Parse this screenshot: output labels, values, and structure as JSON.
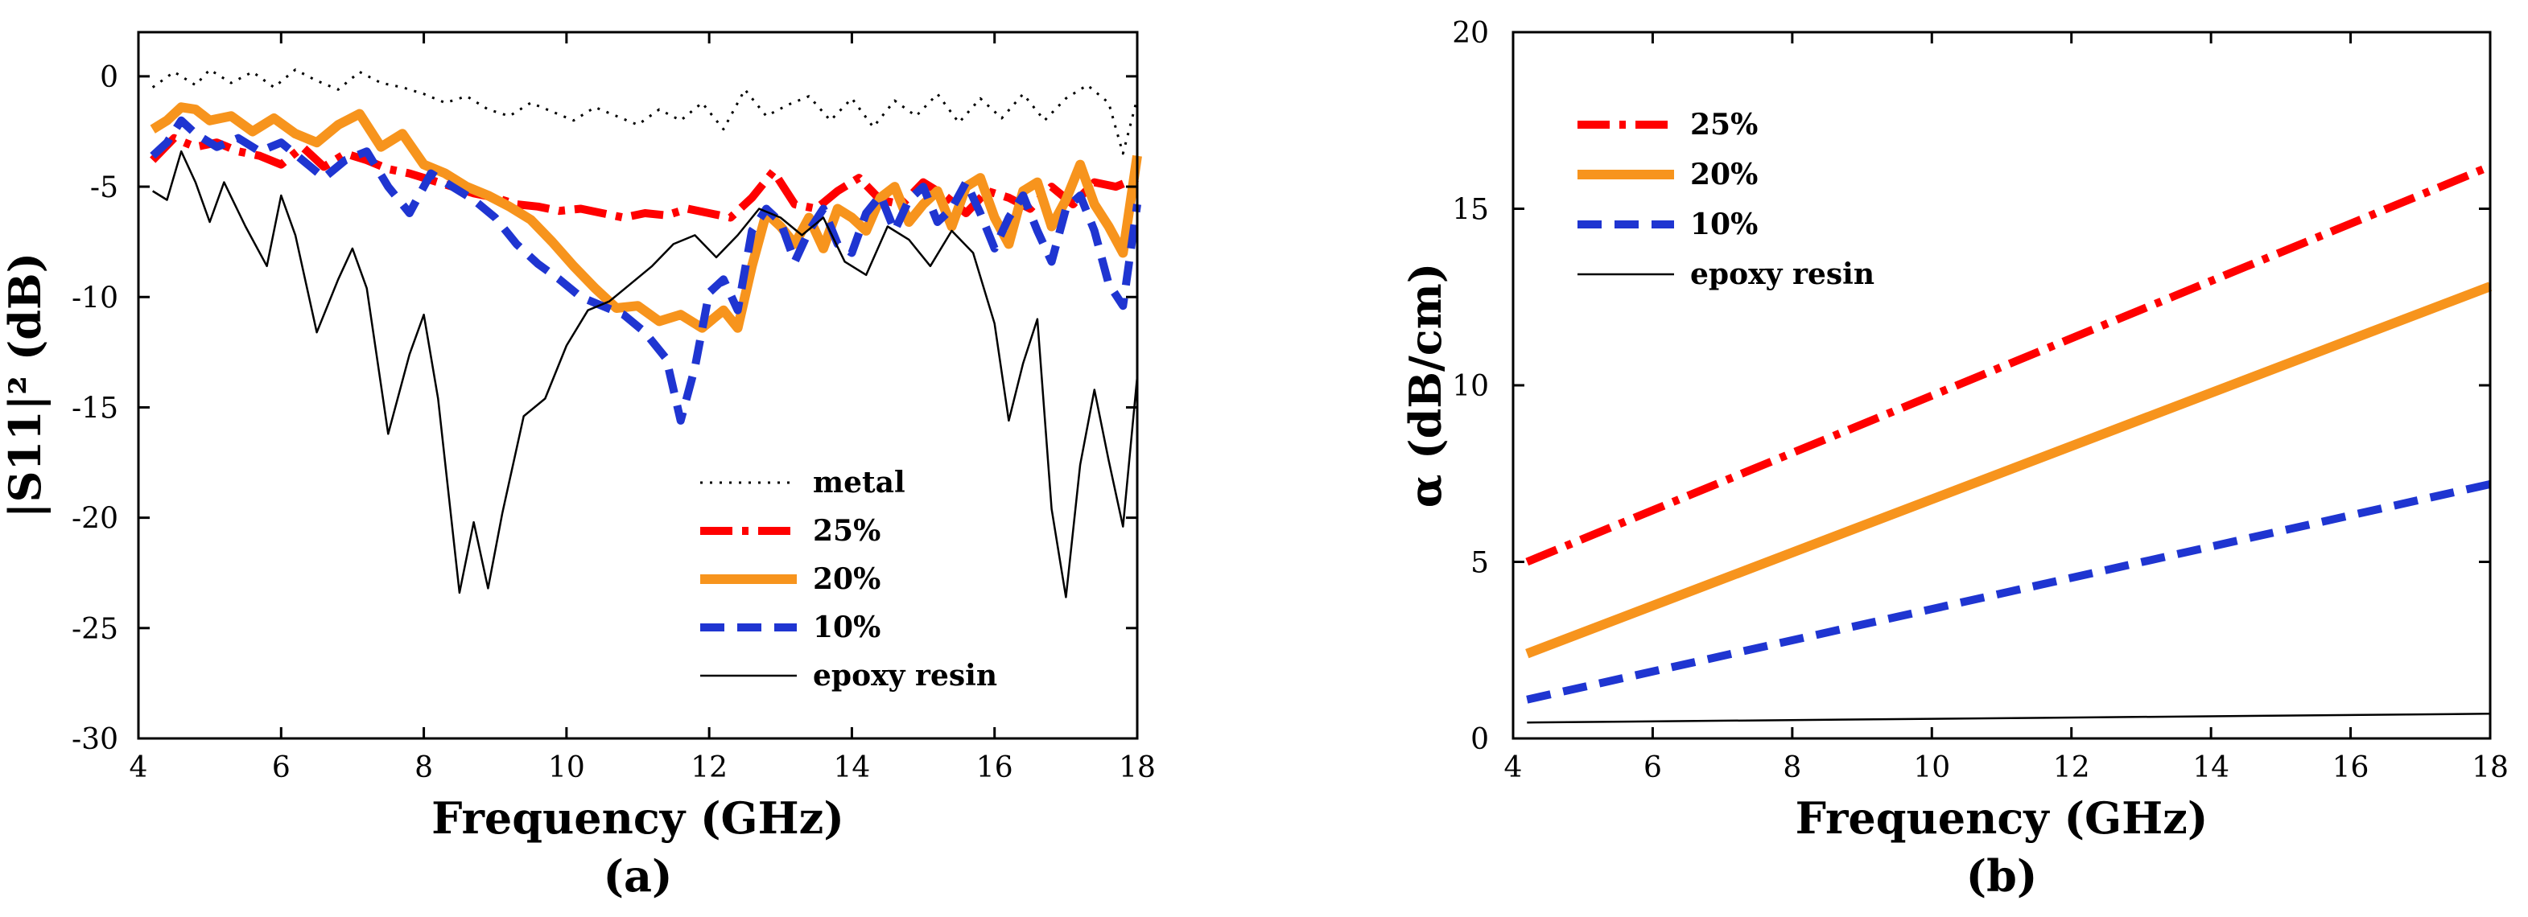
{
  "chart_data": [
    {
      "type": "line",
      "caption": "(a)",
      "xlabel": "Frequency (GHz)",
      "ylabel": "|S11|² (dB)",
      "xlim": [
        4.2,
        18
      ],
      "ylim": [
        -30,
        2
      ],
      "xticks": [
        4,
        6,
        8,
        10,
        12,
        14,
        16,
        18
      ],
      "yticks": [
        0,
        -5,
        -10,
        -15,
        -20,
        -25,
        -30
      ],
      "grid": false,
      "legend_position": "bottom-right",
      "series": [
        {
          "name": "metal",
          "color": "#000000",
          "style": "dotted",
          "x": [
            4.2,
            4.5,
            4.8,
            5.0,
            5.3,
            5.6,
            5.9,
            6.2,
            6.5,
            6.8,
            7.1,
            7.4,
            7.7,
            8.0,
            8.3,
            8.6,
            8.9,
            9.2,
            9.5,
            9.8,
            10.1,
            10.4,
            10.7,
            11.0,
            11.3,
            11.6,
            11.9,
            12.2,
            12.5,
            12.8,
            13.1,
            13.4,
            13.7,
            14.0,
            14.3,
            14.6,
            14.9,
            15.2,
            15.5,
            15.8,
            16.1,
            16.4,
            16.7,
            17.0,
            17.3,
            17.6,
            17.8,
            18.0
          ],
          "y": [
            -0.5,
            0.2,
            -0.4,
            0.3,
            -0.3,
            0.2,
            -0.5,
            0.3,
            -0.2,
            -0.6,
            0.2,
            -0.3,
            -0.5,
            -0.8,
            -1.2,
            -0.9,
            -1.5,
            -1.8,
            -1.2,
            -1.6,
            -2.0,
            -1.4,
            -1.8,
            -2.2,
            -1.5,
            -2.0,
            -1.2,
            -2.4,
            -0.6,
            -1.8,
            -1.3,
            -0.9,
            -2.0,
            -1.0,
            -2.3,
            -1.1,
            -1.8,
            -0.8,
            -2.1,
            -1.0,
            -1.9,
            -0.8,
            -2.0,
            -1.0,
            -0.4,
            -1.2,
            -3.5,
            -1.0
          ]
        },
        {
          "name": "25%",
          "color": "#ff0000",
          "style": "dashdot",
          "x": [
            4.2,
            4.5,
            4.8,
            5.1,
            5.4,
            5.7,
            6.0,
            6.3,
            6.6,
            6.9,
            7.2,
            7.5,
            7.8,
            8.1,
            8.4,
            8.7,
            9.0,
            9.3,
            9.6,
            9.9,
            10.2,
            10.5,
            10.8,
            11.1,
            11.4,
            11.7,
            12.0,
            12.3,
            12.6,
            12.9,
            13.2,
            13.5,
            13.8,
            14.1,
            14.4,
            14.7,
            15.0,
            15.3,
            15.6,
            15.9,
            16.2,
            16.5,
            16.8,
            17.1,
            17.4,
            17.7,
            18.0
          ],
          "y": [
            -3.8,
            -2.8,
            -3.2,
            -3.0,
            -3.4,
            -3.6,
            -4.0,
            -3.2,
            -4.1,
            -3.5,
            -3.8,
            -4.2,
            -4.4,
            -4.7,
            -5.0,
            -5.3,
            -5.5,
            -5.8,
            -5.9,
            -6.1,
            -6.0,
            -6.2,
            -6.4,
            -6.2,
            -6.3,
            -6.0,
            -6.2,
            -6.4,
            -5.5,
            -4.3,
            -5.8,
            -6.0,
            -5.2,
            -4.6,
            -5.6,
            -5.8,
            -4.8,
            -5.4,
            -6.2,
            -5.2,
            -5.5,
            -6.0,
            -5.0,
            -5.8,
            -4.8,
            -5.0,
            -4.6
          ]
        },
        {
          "name": "20%",
          "color": "#f7941d",
          "style": "solid-thick",
          "x": [
            4.2,
            4.4,
            4.6,
            4.8,
            5.0,
            5.3,
            5.6,
            5.9,
            6.2,
            6.5,
            6.8,
            7.1,
            7.4,
            7.7,
            8.0,
            8.3,
            8.6,
            8.9,
            9.2,
            9.5,
            9.8,
            10.1,
            10.4,
            10.7,
            11.0,
            11.3,
            11.6,
            11.9,
            12.2,
            12.4,
            12.6,
            12.8,
            13.0,
            13.2,
            13.4,
            13.6,
            13.8,
            14.0,
            14.2,
            14.4,
            14.6,
            14.8,
            15.0,
            15.2,
            15.4,
            15.6,
            15.8,
            16.0,
            16.2,
            16.4,
            16.6,
            16.8,
            17.0,
            17.2,
            17.4,
            17.6,
            17.8,
            18.0
          ],
          "y": [
            -2.4,
            -2.0,
            -1.4,
            -1.5,
            -2.0,
            -1.8,
            -2.5,
            -1.9,
            -2.6,
            -3.0,
            -2.2,
            -1.7,
            -3.2,
            -2.6,
            -4.0,
            -4.4,
            -5.0,
            -5.4,
            -5.9,
            -6.5,
            -7.5,
            -8.6,
            -9.6,
            -10.5,
            -10.4,
            -11.1,
            -10.8,
            -11.4,
            -10.6,
            -11.4,
            -8.6,
            -6.2,
            -6.8,
            -7.6,
            -6.4,
            -7.8,
            -6.0,
            -6.4,
            -7.0,
            -5.5,
            -5.0,
            -6.6,
            -5.8,
            -5.2,
            -6.8,
            -5.0,
            -4.6,
            -6.4,
            -7.6,
            -5.2,
            -4.8,
            -6.8,
            -5.6,
            -4.0,
            -5.8,
            -6.8,
            -8.0,
            -3.6
          ]
        },
        {
          "name": "10%",
          "color": "#1f35d1",
          "style": "dashed",
          "x": [
            4.2,
            4.4,
            4.6,
            4.8,
            5.1,
            5.4,
            5.7,
            6.0,
            6.3,
            6.6,
            6.9,
            7.2,
            7.5,
            7.8,
            8.1,
            8.4,
            8.7,
            9.0,
            9.3,
            9.6,
            9.9,
            10.2,
            10.5,
            10.8,
            11.1,
            11.4,
            11.6,
            11.8,
            12.0,
            12.2,
            12.4,
            12.6,
            12.8,
            13.0,
            13.2,
            13.4,
            13.6,
            13.8,
            14.0,
            14.2,
            14.4,
            14.6,
            14.8,
            15.0,
            15.2,
            15.4,
            15.6,
            15.8,
            16.0,
            16.2,
            16.4,
            16.6,
            16.8,
            17.0,
            17.2,
            17.4,
            17.6,
            17.8,
            18.0
          ],
          "y": [
            -3.6,
            -3.0,
            -2.0,
            -2.6,
            -3.2,
            -2.8,
            -3.4,
            -3.0,
            -3.8,
            -4.6,
            -3.8,
            -3.4,
            -5.0,
            -6.2,
            -4.4,
            -5.0,
            -5.6,
            -6.4,
            -7.6,
            -8.5,
            -9.2,
            -10.0,
            -10.4,
            -10.8,
            -11.6,
            -12.8,
            -15.6,
            -13.2,
            -9.8,
            -9.2,
            -10.6,
            -7.0,
            -6.0,
            -6.6,
            -8.4,
            -7.0,
            -6.0,
            -7.6,
            -8.0,
            -6.2,
            -5.4,
            -7.0,
            -5.6,
            -5.0,
            -6.6,
            -6.0,
            -4.8,
            -6.2,
            -7.8,
            -6.4,
            -5.4,
            -7.0,
            -8.4,
            -6.0,
            -5.4,
            -7.0,
            -9.4,
            -10.4,
            -5.8
          ]
        },
        {
          "name": "epoxy resin",
          "color": "#000000",
          "style": "solid-thin",
          "x": [
            4.2,
            4.4,
            4.6,
            4.8,
            5.0,
            5.2,
            5.5,
            5.8,
            6.0,
            6.2,
            6.5,
            6.8,
            7.0,
            7.2,
            7.5,
            7.8,
            8.0,
            8.2,
            8.5,
            8.7,
            8.9,
            9.1,
            9.4,
            9.7,
            10.0,
            10.3,
            10.6,
            10.9,
            11.2,
            11.5,
            11.8,
            12.1,
            12.4,
            12.7,
            13.0,
            13.3,
            13.6,
            13.9,
            14.2,
            14.5,
            14.8,
            15.1,
            15.4,
            15.7,
            16.0,
            16.2,
            16.4,
            16.6,
            16.8,
            17.0,
            17.2,
            17.4,
            17.6,
            17.8,
            18.0
          ],
          "y": [
            -5.2,
            -5.6,
            -3.4,
            -4.8,
            -6.6,
            -4.8,
            -6.8,
            -8.6,
            -5.4,
            -7.2,
            -11.6,
            -9.2,
            -7.8,
            -9.6,
            -16.2,
            -12.6,
            -10.8,
            -14.6,
            -23.4,
            -20.2,
            -23.2,
            -19.8,
            -15.4,
            -14.6,
            -12.2,
            -10.6,
            -10.2,
            -9.4,
            -8.6,
            -7.6,
            -7.2,
            -8.2,
            -7.2,
            -6.0,
            -6.4,
            -7.2,
            -6.4,
            -8.4,
            -9.0,
            -6.8,
            -7.4,
            -8.6,
            -7.0,
            -8.0,
            -11.2,
            -15.6,
            -13.0,
            -11.0,
            -19.6,
            -23.6,
            -17.6,
            -14.2,
            -17.4,
            -20.4,
            -13.6
          ]
        }
      ]
    },
    {
      "type": "line",
      "caption": "(b)",
      "xlabel": "Frequency (GHz)",
      "ylabel": "α (dB/cm)",
      "xlim": [
        4,
        18
      ],
      "ylim": [
        0,
        20
      ],
      "xticks": [
        4,
        6,
        8,
        10,
        12,
        14,
        16,
        18
      ],
      "yticks": [
        0,
        5,
        10,
        15,
        20
      ],
      "grid": false,
      "legend_position": "top-left",
      "series": [
        {
          "name": "25%",
          "color": "#ff0000",
          "style": "dashdot",
          "x": [
            4.2,
            18
          ],
          "y": [
            5.0,
            16.2
          ]
        },
        {
          "name": "20%",
          "color": "#f7941d",
          "style": "solid-thick",
          "x": [
            4.2,
            18
          ],
          "y": [
            2.4,
            12.8
          ]
        },
        {
          "name": "10%",
          "color": "#1f35d1",
          "style": "dashed",
          "x": [
            4.2,
            18
          ],
          "y": [
            1.1,
            7.2
          ]
        },
        {
          "name": "epoxy resin",
          "color": "#000000",
          "style": "solid-thin",
          "x": [
            4.2,
            18
          ],
          "y": [
            0.45,
            0.7
          ]
        }
      ]
    }
  ]
}
